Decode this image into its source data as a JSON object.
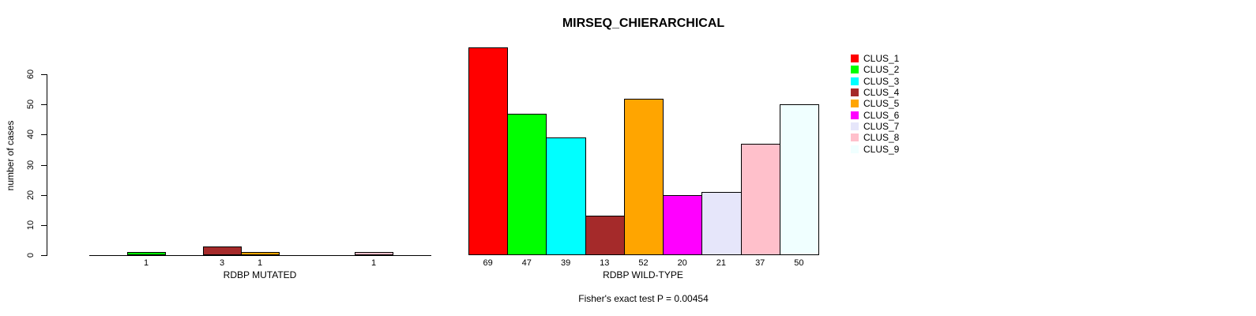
{
  "title": "MIRSEQ_CHIERARCHICAL",
  "chart_data": {
    "type": "bar",
    "title": "MIRSEQ_CHIERARCHICAL",
    "ylabel": "number of cases",
    "ylim": [
      0,
      60
    ],
    "yticks": [
      0,
      10,
      20,
      30,
      40,
      50,
      60
    ],
    "grid": false,
    "legend_position": "right",
    "clusters": [
      "CLUS_1",
      "CLUS_2",
      "CLUS_3",
      "CLUS_4",
      "CLUS_5",
      "CLUS_6",
      "CLUS_7",
      "CLUS_8",
      "CLUS_9"
    ],
    "colors": [
      "#FF0000",
      "#00FF00",
      "#00FFFF",
      "#A52A2A",
      "#FFA500",
      "#FF00FF",
      "#E6E6FA",
      "#FFC0CB",
      "#F0FFFF"
    ],
    "panels": [
      {
        "xlabel": "RDBP MUTATED",
        "values": [
          0,
          1,
          0,
          3,
          1,
          0,
          0,
          1,
          0
        ],
        "bar_labels": [
          "",
          "1",
          "",
          "3",
          "1",
          "",
          "",
          "1",
          ""
        ]
      },
      {
        "xlabel": "RDBP WILD-TYPE",
        "values": [
          69,
          47,
          39,
          13,
          52,
          20,
          21,
          37,
          50
        ],
        "bar_labels": [
          "69",
          "47",
          "39",
          "13",
          "52",
          "20",
          "21",
          "37",
          "50"
        ]
      }
    ],
    "annotation": "Fisher's exact test P = 0.00454"
  }
}
